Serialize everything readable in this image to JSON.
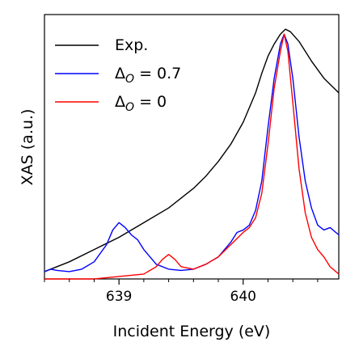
{
  "chart_data": {
    "type": "line",
    "xlabel": "Incident Energy (eV)",
    "ylabel": "XAS (a.u.)",
    "xlim": [
      638.4,
      640.77
    ],
    "ylim": [
      0.0,
      1.08
    ],
    "xticks": [
      639,
      640
    ],
    "xtick_labels": [
      "639",
      "640"
    ],
    "yticks_shown": false,
    "grid": false,
    "legend_position": "top-left",
    "series": [
      {
        "name": "Exp.",
        "color": "#000000",
        "x": [
          638.4,
          638.6,
          638.8,
          639.0,
          639.2,
          639.4,
          639.6,
          639.7,
          639.8,
          639.9,
          640.0,
          640.1,
          640.15,
          640.2,
          640.25,
          640.3,
          640.34,
          640.38,
          640.45,
          640.55,
          640.65,
          640.77
        ],
        "y": [
          0.03,
          0.07,
          0.12,
          0.17,
          0.23,
          0.29,
          0.37,
          0.42,
          0.48,
          0.55,
          0.64,
          0.76,
          0.84,
          0.91,
          0.96,
          1.0,
          1.02,
          1.01,
          0.97,
          0.89,
          0.82,
          0.76
        ]
      },
      {
        "name": "Δ_O = 0.7",
        "color": "#0000ff",
        "x": [
          638.4,
          638.45,
          638.5,
          638.6,
          638.7,
          638.8,
          638.9,
          638.95,
          639.0,
          639.05,
          639.1,
          639.15,
          639.2,
          639.3,
          639.4,
          639.5,
          639.6,
          639.7,
          639.8,
          639.9,
          639.95,
          640.0,
          640.05,
          640.1,
          640.15,
          640.2,
          640.25,
          640.3,
          640.33,
          640.36,
          640.4,
          640.45,
          640.5,
          640.55,
          640.6,
          640.65,
          640.7,
          640.77
        ],
        "y": [
          0.03,
          0.04,
          0.035,
          0.03,
          0.04,
          0.07,
          0.14,
          0.2,
          0.23,
          0.21,
          0.18,
          0.16,
          0.12,
          0.06,
          0.04,
          0.035,
          0.04,
          0.06,
          0.09,
          0.15,
          0.19,
          0.2,
          0.22,
          0.28,
          0.4,
          0.62,
          0.82,
          0.96,
          1.0,
          0.96,
          0.82,
          0.58,
          0.4,
          0.29,
          0.22,
          0.2,
          0.21,
          0.18
        ]
      },
      {
        "name": "Δ_O = 0",
        "color": "#ff0000",
        "x": [
          638.4,
          638.6,
          638.8,
          639.0,
          639.2,
          639.3,
          639.35,
          639.4,
          639.45,
          639.5,
          639.6,
          639.7,
          639.8,
          639.9,
          640.0,
          640.05,
          640.1,
          640.15,
          640.2,
          640.25,
          640.3,
          640.33,
          640.36,
          640.4,
          640.45,
          640.5,
          640.55,
          640.6,
          640.65,
          640.7,
          640.77
        ],
        "y": [
          0.0,
          0.0,
          0.0,
          0.01,
          0.02,
          0.05,
          0.08,
          0.1,
          0.08,
          0.05,
          0.04,
          0.06,
          0.09,
          0.14,
          0.19,
          0.21,
          0.25,
          0.35,
          0.55,
          0.78,
          0.93,
          1.0,
          0.93,
          0.72,
          0.45,
          0.27,
          0.17,
          0.12,
          0.09,
          0.05,
          0.02
        ]
      }
    ]
  },
  "legend": {
    "items": [
      {
        "label": "Exp.",
        "color": "#000000",
        "kind": "plain"
      },
      {
        "label": "Δ",
        "sub": "O",
        "rest": " = 0.7",
        "color": "#0000ff",
        "kind": "delta"
      },
      {
        "label": "Δ",
        "sub": "O",
        "rest": " = 0",
        "color": "#ff0000",
        "kind": "delta"
      }
    ]
  }
}
